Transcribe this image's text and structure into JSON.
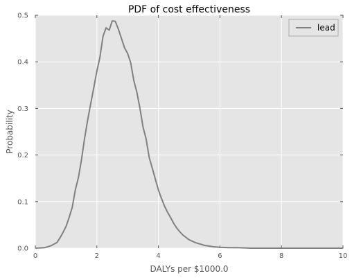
{
  "chart_data": {
    "type": "line",
    "title": "PDF of cost effectiveness",
    "xlabel": "DALYs per $1000.0",
    "ylabel": "Probability",
    "xlim": [
      0,
      10
    ],
    "ylim": [
      0,
      0.5
    ],
    "xticks": [
      "0",
      "2",
      "4",
      "6",
      "8",
      "10"
    ],
    "yticks": [
      "0.0",
      "0.1",
      "0.2",
      "0.3",
      "0.4",
      "0.5"
    ],
    "grid": true,
    "legend_position": "top-right",
    "colors": {
      "plot_bg": "#e5e5e5",
      "grid": "#ffffff",
      "line": "#808080"
    },
    "series": [
      {
        "name": "lead",
        "x": [
          0.0,
          0.3,
          0.5,
          0.7,
          0.8,
          0.9,
          1.0,
          1.1,
          1.2,
          1.3,
          1.4,
          1.5,
          1.6,
          1.7,
          1.8,
          1.9,
          2.0,
          2.1,
          2.2,
          2.3,
          2.4,
          2.5,
          2.6,
          2.7,
          2.8,
          2.9,
          3.0,
          3.1,
          3.2,
          3.3,
          3.4,
          3.5,
          3.6,
          3.7,
          3.8,
          3.9,
          4.0,
          4.1,
          4.2,
          4.3,
          4.4,
          4.5,
          4.6,
          4.7,
          4.8,
          4.9,
          5.0,
          5.1,
          5.2,
          5.3,
          5.4,
          5.5,
          5.6,
          5.8,
          6.0,
          6.3,
          6.6,
          7.0,
          7.5,
          8.0,
          9.0,
          10.0
        ],
        "y": [
          0.0,
          0.001,
          0.005,
          0.012,
          0.022,
          0.034,
          0.047,
          0.066,
          0.088,
          0.125,
          0.152,
          0.19,
          0.235,
          0.275,
          0.31,
          0.345,
          0.38,
          0.41,
          0.455,
          0.473,
          0.468,
          0.488,
          0.487,
          0.47,
          0.45,
          0.43,
          0.418,
          0.398,
          0.36,
          0.335,
          0.3,
          0.26,
          0.235,
          0.195,
          0.172,
          0.148,
          0.125,
          0.107,
          0.09,
          0.077,
          0.065,
          0.053,
          0.043,
          0.035,
          0.028,
          0.023,
          0.018,
          0.015,
          0.012,
          0.01,
          0.008,
          0.006,
          0.005,
          0.003,
          0.002,
          0.001,
          0.001,
          0.0,
          0.0,
          0.0,
          0.0,
          0.0
        ]
      }
    ]
  }
}
